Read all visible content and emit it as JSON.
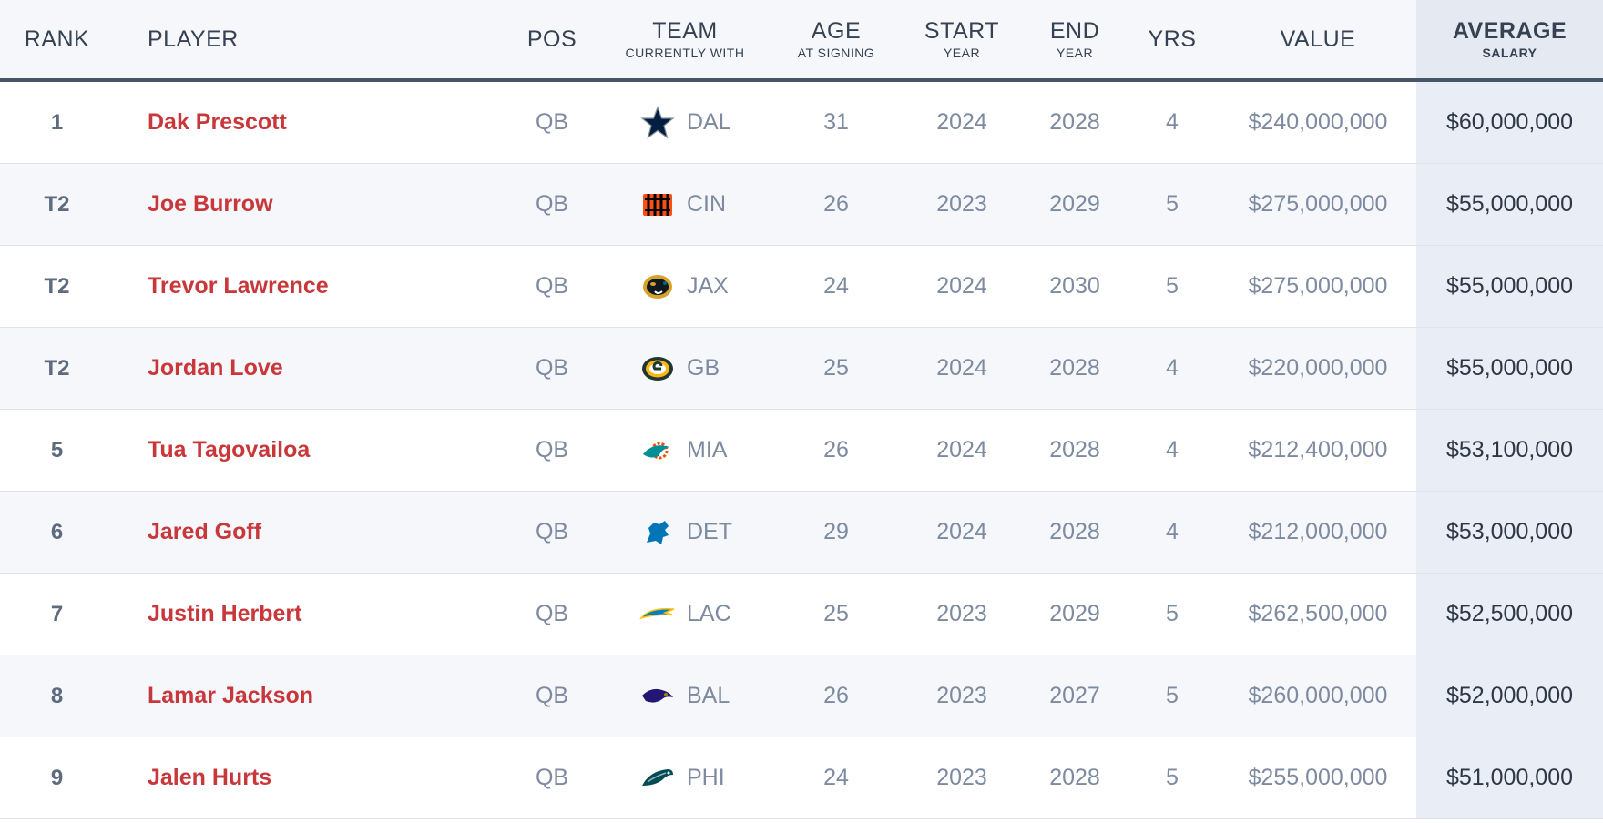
{
  "columns": {
    "rank": "RANK",
    "player": "PLAYER",
    "pos": "POS",
    "team": "TEAM",
    "team_sub": "CURRENTLY WITH",
    "age": "AGE",
    "age_sub": "AT SIGNING",
    "start": "START",
    "start_sub": "YEAR",
    "end": "END",
    "end_sub": "YEAR",
    "yrs": "YRS",
    "value": "VALUE",
    "avg": "AVERAGE",
    "avg_sub": "SALARY"
  },
  "rows": [
    {
      "rank": "1",
      "player": "Dak Prescott",
      "pos": "QB",
      "team": "DAL",
      "logo": "cowboys-star-icon",
      "age": "31",
      "start": "2024",
      "end": "2028",
      "yrs": "4",
      "value": "$240,000,000",
      "avg": "$60,000,000"
    },
    {
      "rank": "T2",
      "player": "Joe Burrow",
      "pos": "QB",
      "team": "CIN",
      "logo": "bengals-logo-icon",
      "age": "26",
      "start": "2023",
      "end": "2029",
      "yrs": "5",
      "value": "$275,000,000",
      "avg": "$55,000,000"
    },
    {
      "rank": "T2",
      "player": "Trevor Lawrence",
      "pos": "QB",
      "team": "JAX",
      "logo": "jaguars-logo-icon",
      "age": "24",
      "start": "2024",
      "end": "2030",
      "yrs": "5",
      "value": "$275,000,000",
      "avg": "$55,000,000"
    },
    {
      "rank": "T2",
      "player": "Jordan Love",
      "pos": "QB",
      "team": "GB",
      "logo": "packers-logo-icon",
      "age": "25",
      "start": "2024",
      "end": "2028",
      "yrs": "4",
      "value": "$220,000,000",
      "avg": "$55,000,000"
    },
    {
      "rank": "5",
      "player": "Tua Tagovailoa",
      "pos": "QB",
      "team": "MIA",
      "logo": "dolphins-logo-icon",
      "age": "26",
      "start": "2024",
      "end": "2028",
      "yrs": "4",
      "value": "$212,400,000",
      "avg": "$53,100,000"
    },
    {
      "rank": "6",
      "player": "Jared Goff",
      "pos": "QB",
      "team": "DET",
      "logo": "lions-logo-icon",
      "age": "29",
      "start": "2024",
      "end": "2028",
      "yrs": "4",
      "value": "$212,000,000",
      "avg": "$53,000,000"
    },
    {
      "rank": "7",
      "player": "Justin Herbert",
      "pos": "QB",
      "team": "LAC",
      "logo": "chargers-bolt-icon",
      "age": "25",
      "start": "2023",
      "end": "2029",
      "yrs": "5",
      "value": "$262,500,000",
      "avg": "$52,500,000"
    },
    {
      "rank": "8",
      "player": "Lamar Jackson",
      "pos": "QB",
      "team": "BAL",
      "logo": "ravens-logo-icon",
      "age": "26",
      "start": "2023",
      "end": "2027",
      "yrs": "5",
      "value": "$260,000,000",
      "avg": "$52,000,000"
    },
    {
      "rank": "9",
      "player": "Jalen Hurts",
      "pos": "QB",
      "team": "PHI",
      "logo": "eagles-logo-icon",
      "age": "24",
      "start": "2023",
      "end": "2028",
      "yrs": "5",
      "value": "$255,000,000",
      "avg": "$51,000,000"
    }
  ],
  "colors": {
    "player_link": "#c8373a",
    "header_text": "#364152",
    "muted_text": "#7d8aa0",
    "header_rule": "#485568",
    "avg_column_bg": "#e9edf5"
  }
}
